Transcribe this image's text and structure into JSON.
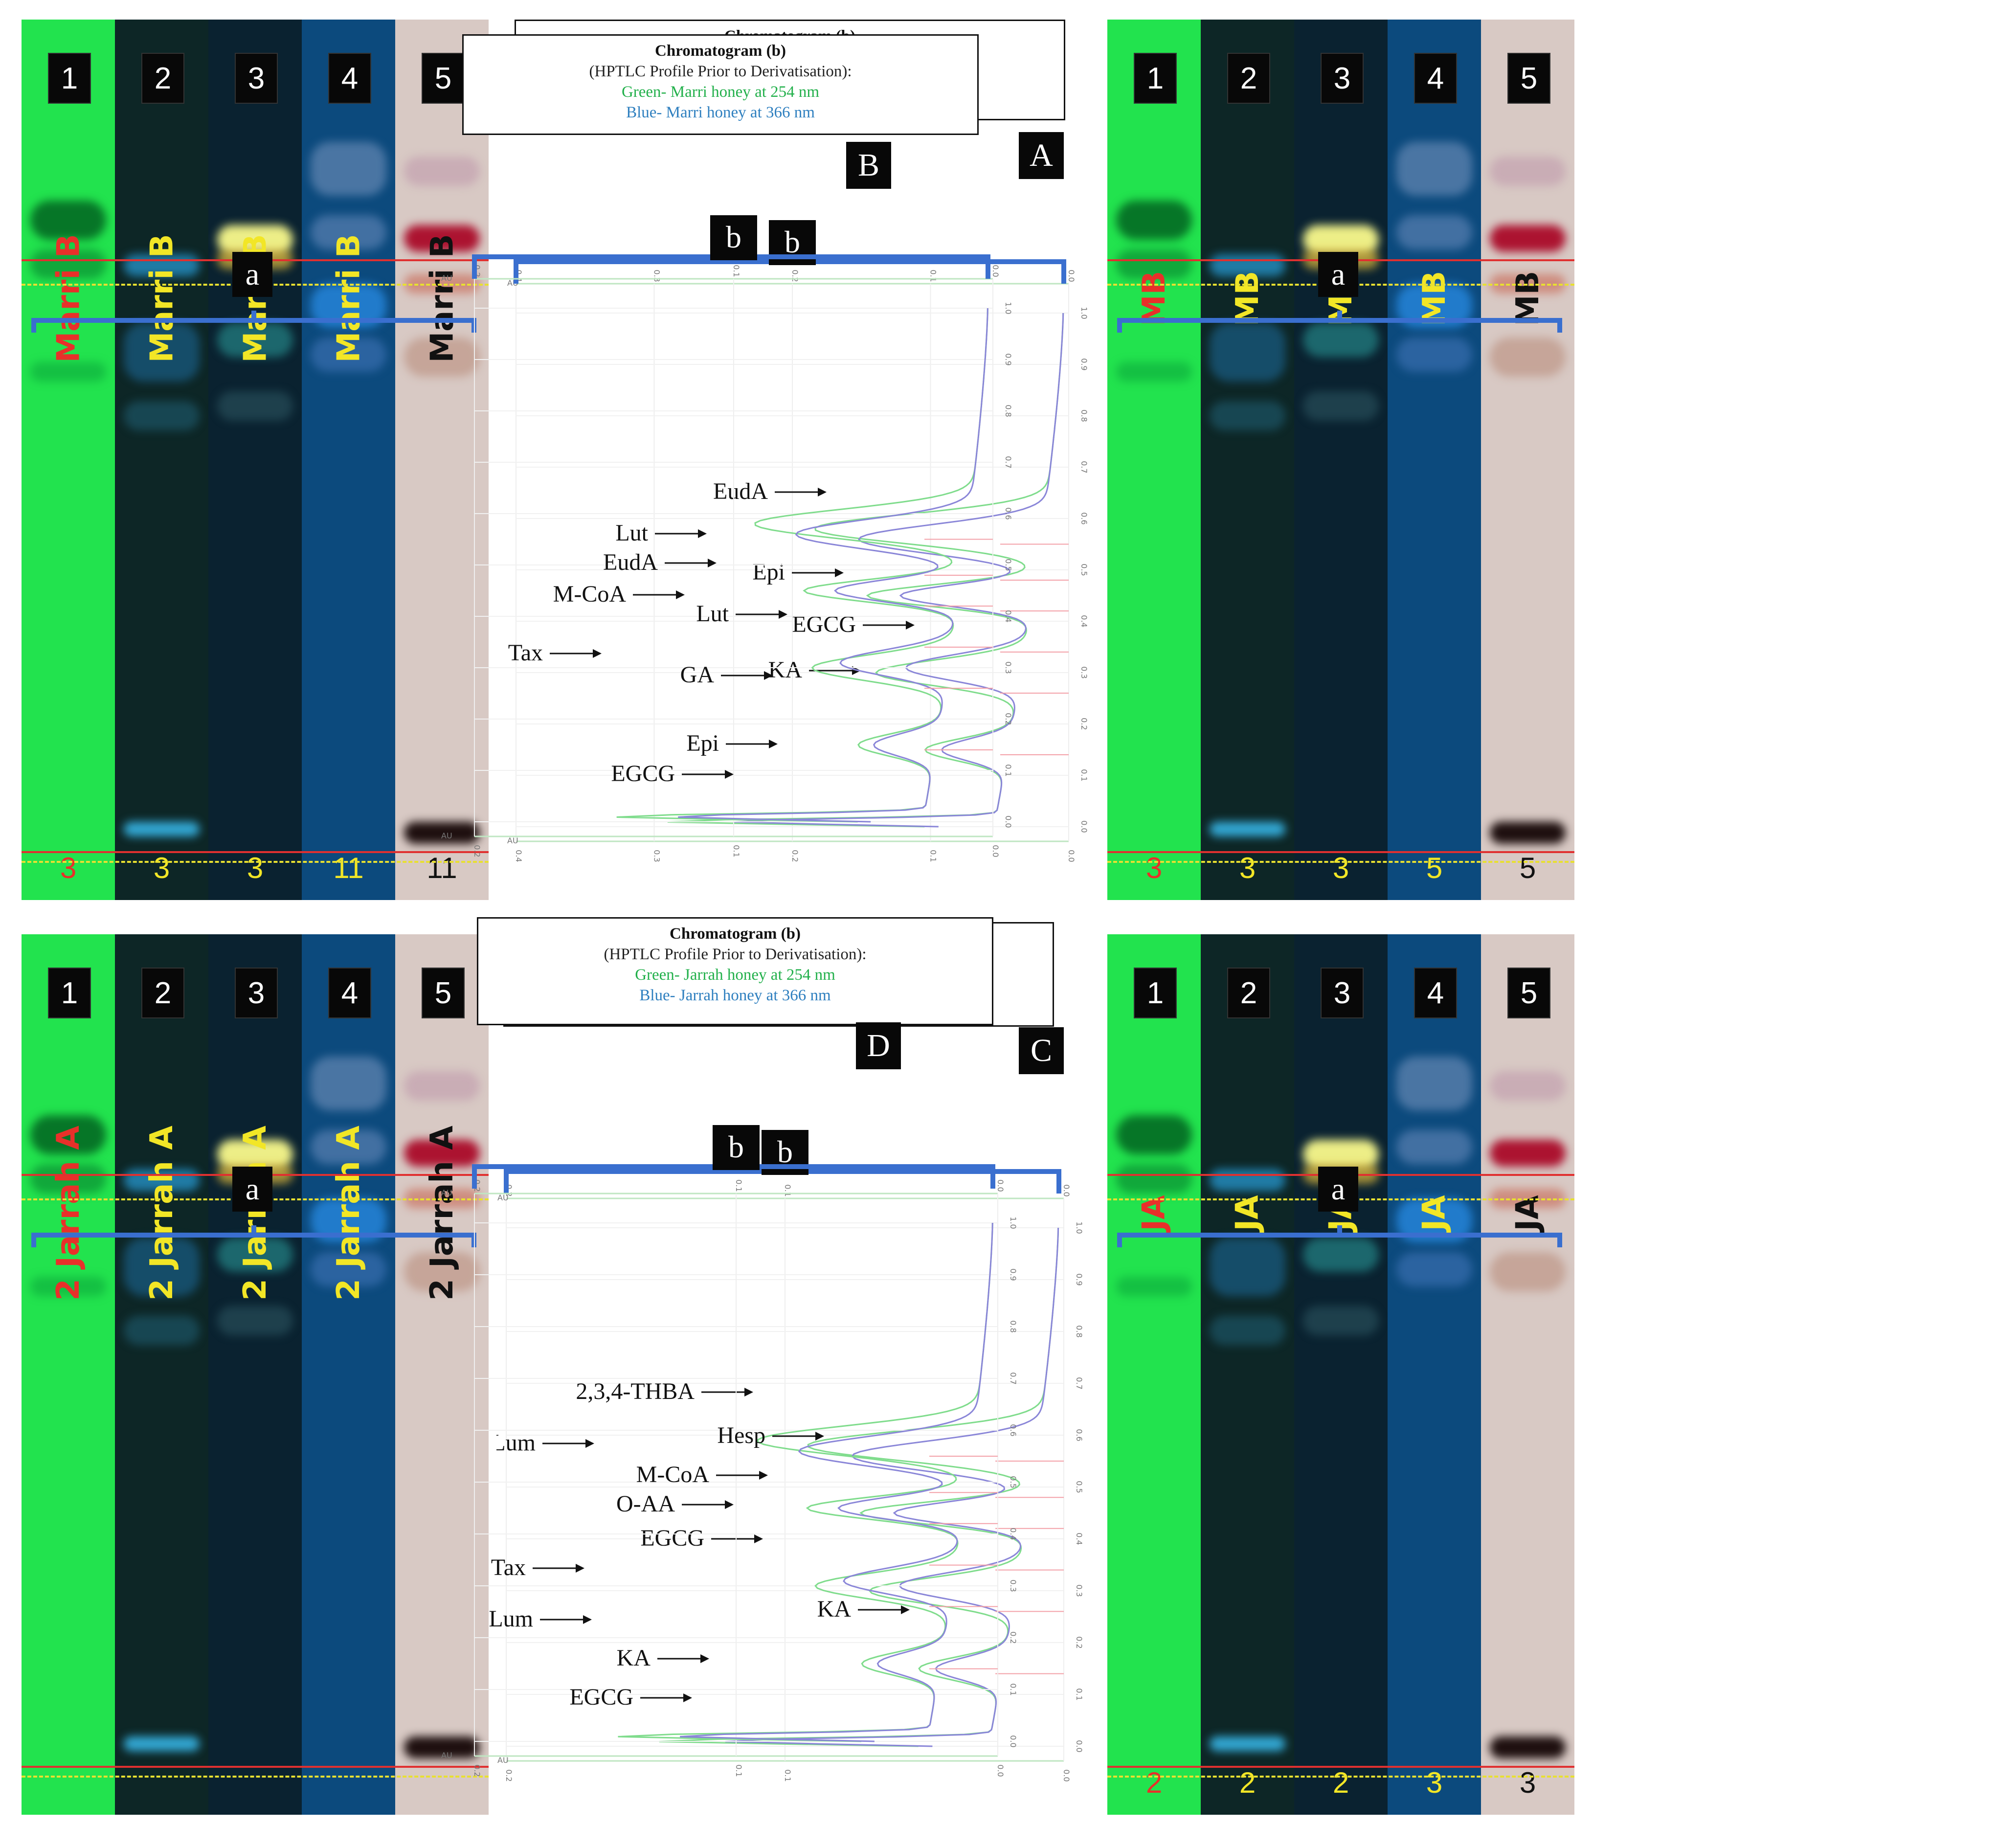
{
  "colors": {
    "lane1_bg": "#22e34e",
    "lane2_bg": "#0d2626",
    "lane3_bg": "#0a2230",
    "lane4_bg": "#0c4a7d",
    "lane5_bg": "#d8c9c4",
    "label_red": "#e8302a",
    "label_yellow": "#f2e626",
    "label_black": "#111111",
    "green_trace": "#7fdc8c",
    "blue_trace": "#8a86d8",
    "bracket_blue": "#3a6fcf",
    "ref_pink": "#f3a0a8"
  },
  "panels": [
    {
      "letter": "A",
      "lane_numbers": [
        "1",
        "2",
        "3",
        "4",
        "5"
      ],
      "lane_label": "Marri B",
      "lane_counts": [
        "3",
        "3",
        "3",
        "11",
        "11"
      ],
      "legend": {
        "title": "Chromatogram (b)",
        "subtitle": "(HPTLC Profile Prior to Derivatisation):",
        "green": "Green- Marri honey at 254 nm",
        "blue": "Blue- Marri honey at 366 nm"
      },
      "marker_a": "a",
      "marker_b": "b",
      "peaks": [
        "EudA",
        "Lut",
        "Epi",
        "EGCG",
        "KA"
      ],
      "au_ticks": [
        "0.4",
        "0.3",
        "0.2",
        "0.1",
        "0.0"
      ],
      "rf_ticks": [
        "1.0",
        "0.9",
        "0.8",
        "0.7",
        "0.6",
        "0.5",
        "0.4",
        "0.3",
        "0.2",
        "0.1",
        "0.0"
      ],
      "au_label": "AU"
    },
    {
      "letter": "B",
      "lane_numbers": [
        "1",
        "2",
        "3",
        "4",
        "5"
      ],
      "lane_label": "MB",
      "lane_counts": [
        "3",
        "3",
        "3",
        "5",
        "5"
      ],
      "legend": {
        "title": "Chromatogram (b)",
        "subtitle": "(HPTLC Profile Prior to Derivatisation):",
        "green": "Green- Marri honey at 254 nm",
        "blue": "Blue- Marri honey at 366 nm"
      },
      "marker_a": "a",
      "marker_b": "b",
      "peaks": [
        "EudA",
        "M-CoA",
        "Lut",
        "Tax",
        "GA",
        "Epi",
        "EGCG"
      ],
      "au_ticks": [
        "0.2",
        "0.1",
        "0.0"
      ],
      "rf_ticks": [
        "1.0",
        "0.9",
        "0.8",
        "0.7",
        "0.6",
        "0.5",
        "0.4",
        "0.3",
        "0.2",
        "0.1",
        "0.0"
      ],
      "au_label": "AU"
    },
    {
      "letter": "C",
      "lane_numbers": [
        "1",
        "2",
        "3",
        "4",
        "5"
      ],
      "lane_label": "2 Jarrah A",
      "lane_counts": [],
      "legend": {
        "title": "Chromatogram (b)",
        "subtitle": "(HPTLC Profile Prior to Derivatisation):",
        "green": "Green- Jarrah honey at 254 nm",
        "blue": "Blue- Jarrah honey at 366 nm"
      },
      "marker_a": "a",
      "marker_b": "b",
      "peaks": [
        "2,3,4-THBA",
        "Lum",
        "EGCG",
        "KA"
      ],
      "au_ticks": [
        "0.2",
        "0.1",
        "0.0"
      ],
      "rf_ticks": [
        "1.0",
        "0.9",
        "0.8",
        "0.7",
        "0.6",
        "0.5",
        "0.4",
        "0.3",
        "0.2",
        "0.1",
        "0.0"
      ],
      "au_label": "AU"
    },
    {
      "letter": "D",
      "lane_numbers": [
        "1",
        "2",
        "3",
        "4",
        "5"
      ],
      "lane_label": "JA",
      "lane_counts": [
        "2",
        "2",
        "2",
        "3",
        "3"
      ],
      "legend": {
        "title": "Chromatogram (b)",
        "subtitle": "(HPTLC Profile Prior to Derivatisation):",
        "green": "Green- Jarrah honey at 254 nm",
        "blue": "Blue- Jarrah honey at 366 nm"
      },
      "marker_a": "a",
      "marker_b": "b",
      "peaks": [
        "Hesp",
        "M-CoA",
        "O-AA",
        "Tax",
        "Lum",
        "KA",
        "EGCG"
      ],
      "au_ticks": [
        "0.2",
        "0.1",
        "0.0"
      ],
      "rf_ticks": [
        "1.0",
        "0.9",
        "0.8",
        "0.7",
        "0.6",
        "0.5",
        "0.4",
        "0.3",
        "0.2",
        "0.1",
        "0.0"
      ],
      "au_label": "AU"
    }
  ]
}
